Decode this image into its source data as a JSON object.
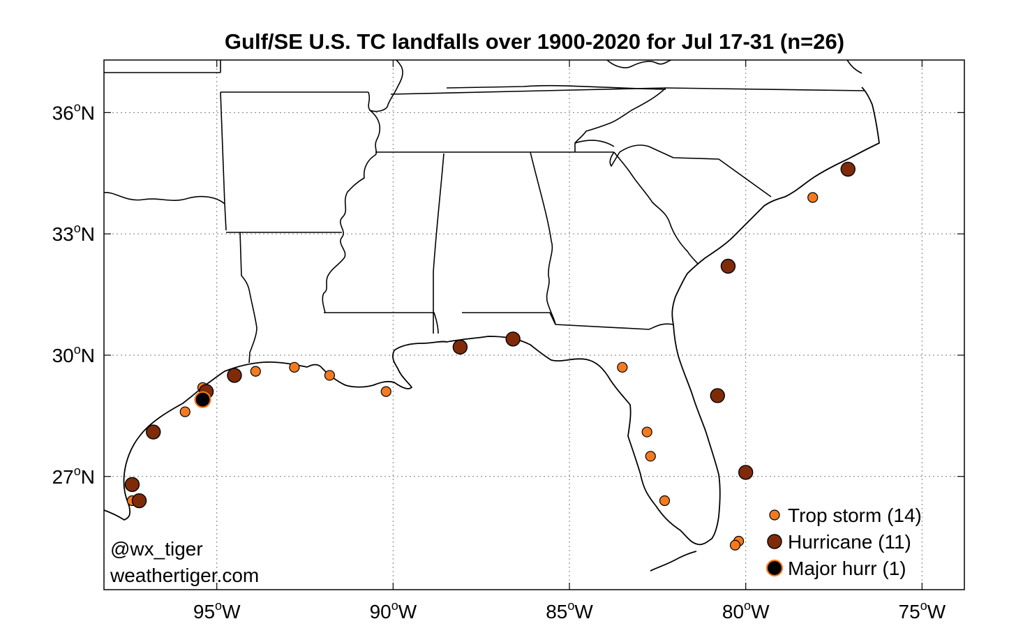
{
  "title": "Gulf/SE U.S. TC landfalls over 1900-2020 for Jul 17-31 (n=26)",
  "credit": {
    "handle": "@wx_tiger",
    "site": "weathertiger.com"
  },
  "colors": {
    "trop_storm": "#f47a20",
    "hurricane": "#7f2b0a",
    "major_hurr": "#000000",
    "major_hurr_edge": "#f47a20",
    "marker_edge": "#000000",
    "grid": "#7a7a7a"
  },
  "chart_data": {
    "type": "scatter",
    "title": "Gulf/SE U.S. TC landfalls over 1900-2020 for Jul 17-31 (n=26)",
    "projection": "equirectangular",
    "grid": true,
    "legend_placement": "bottom-right",
    "xlim": [
      -98.2,
      -73.8
    ],
    "ylim": [
      24.2,
      37.3
    ],
    "x_ticks": [
      {
        "value": -95,
        "num": "95",
        "sup": "o",
        "dir": "W"
      },
      {
        "value": -90,
        "num": "90",
        "sup": "o",
        "dir": "W"
      },
      {
        "value": -85,
        "num": "85",
        "sup": "o",
        "dir": "W"
      },
      {
        "value": -80,
        "num": "80",
        "sup": "o",
        "dir": "W"
      },
      {
        "value": -75,
        "num": "75",
        "sup": "o",
        "dir": "W"
      }
    ],
    "y_ticks": [
      {
        "value": 27,
        "num": "27",
        "sup": "o",
        "dir": "N"
      },
      {
        "value": 30,
        "num": "30",
        "sup": "o",
        "dir": "N"
      },
      {
        "value": 33,
        "num": "33",
        "sup": "o",
        "dir": "N"
      },
      {
        "value": 36,
        "num": "36",
        "sup": "o",
        "dir": "N"
      }
    ],
    "series": [
      {
        "name": "Trop storm (14)",
        "key": "trop_storm",
        "points": [
          [
            -97.4,
            26.4
          ],
          [
            -95.4,
            29.2
          ],
          [
            -95.9,
            28.6
          ],
          [
            -93.9,
            29.6
          ],
          [
            -92.8,
            29.7
          ],
          [
            -91.8,
            29.5
          ],
          [
            -90.2,
            29.1
          ],
          [
            -83.5,
            29.7
          ],
          [
            -82.8,
            28.1
          ],
          [
            -82.7,
            27.5
          ],
          [
            -82.3,
            26.4
          ],
          [
            -80.2,
            25.4
          ],
          [
            -80.3,
            25.3
          ],
          [
            -78.1,
            33.9
          ]
        ]
      },
      {
        "name": "Hurricane (11)",
        "key": "hurricane",
        "points": [
          [
            -97.4,
            26.8
          ],
          [
            -97.2,
            26.4
          ],
          [
            -96.8,
            28.1
          ],
          [
            -95.3,
            29.1
          ],
          [
            -94.5,
            29.5
          ],
          [
            -88.1,
            30.2
          ],
          [
            -86.6,
            30.4
          ],
          [
            -80.5,
            32.2
          ],
          [
            -80.8,
            29.0
          ],
          [
            -80.0,
            27.1
          ],
          [
            -77.1,
            34.6
          ]
        ]
      },
      {
        "name": "Major hurr (1)",
        "key": "major_hurr",
        "points": [
          [
            -95.4,
            28.9
          ]
        ]
      }
    ]
  }
}
